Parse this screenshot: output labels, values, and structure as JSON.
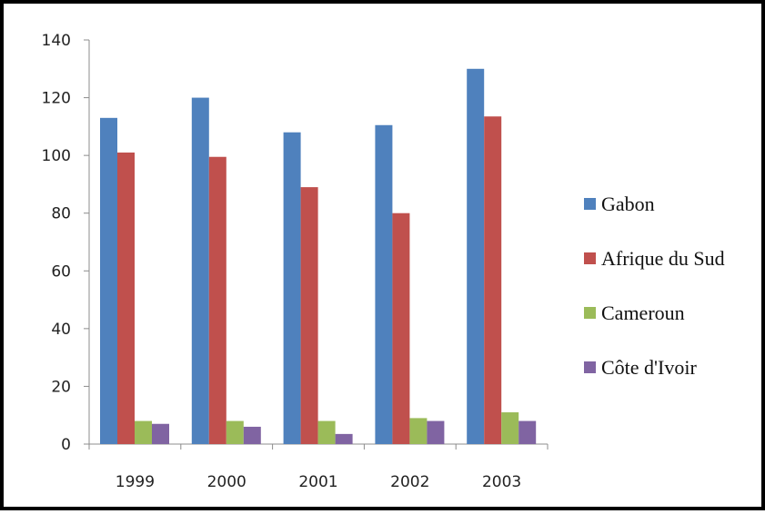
{
  "chart_data": {
    "type": "bar",
    "categories": [
      "1999",
      "2000",
      "2001",
      "2002",
      "2003"
    ],
    "series": [
      {
        "name": "Gabon",
        "color": "#4F81BD",
        "values": [
          113,
          120,
          108,
          110.5,
          130
        ]
      },
      {
        "name": "Afrique du Sud",
        "color": "#C0504D",
        "values": [
          101,
          99.5,
          89,
          80,
          113.5
        ]
      },
      {
        "name": "Cameroun",
        "color": "#9BBB59",
        "values": [
          8,
          8,
          8,
          9,
          11
        ]
      },
      {
        "name": "Côte d'Ivoir",
        "color": "#8064A2",
        "values": [
          7,
          6,
          3.5,
          8,
          8
        ]
      }
    ],
    "ylim": [
      0,
      140
    ],
    "yticks": [
      0,
      20,
      40,
      60,
      80,
      100,
      120,
      140
    ],
    "grid": false,
    "legend_position": "right"
  }
}
